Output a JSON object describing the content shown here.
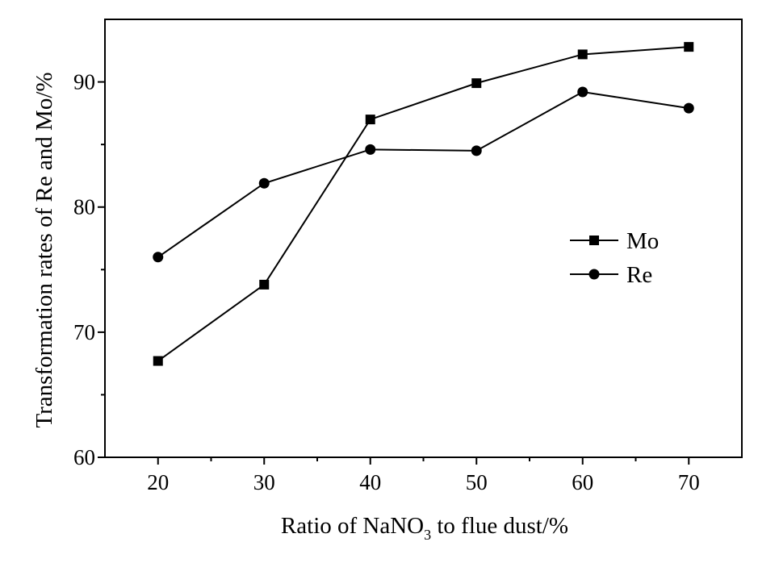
{
  "chart_data": {
    "type": "line",
    "xlabel": {
      "before": "Ratio of NaNO",
      "sub": "3",
      "after": " to flue dust/%"
    },
    "ylabel": "Transformation rates of Re and Mo/%",
    "x": [
      20,
      30,
      40,
      50,
      60,
      70
    ],
    "xlim": [
      15,
      75
    ],
    "ylim": [
      60,
      95
    ],
    "xticks": [
      20,
      30,
      40,
      50,
      60,
      70
    ],
    "yticks": [
      60,
      70,
      80,
      90
    ],
    "series": [
      {
        "name": "Mo",
        "marker": "square",
        "values": [
          67.7,
          73.8,
          87.0,
          89.9,
          92.2,
          92.8
        ]
      },
      {
        "name": "Re",
        "marker": "circle",
        "values": [
          76.0,
          81.9,
          84.6,
          84.5,
          89.2,
          87.9
        ]
      }
    ],
    "legend": "right",
    "grid": false,
    "colors": {
      "line": "#000000",
      "marker": "#000000"
    }
  }
}
